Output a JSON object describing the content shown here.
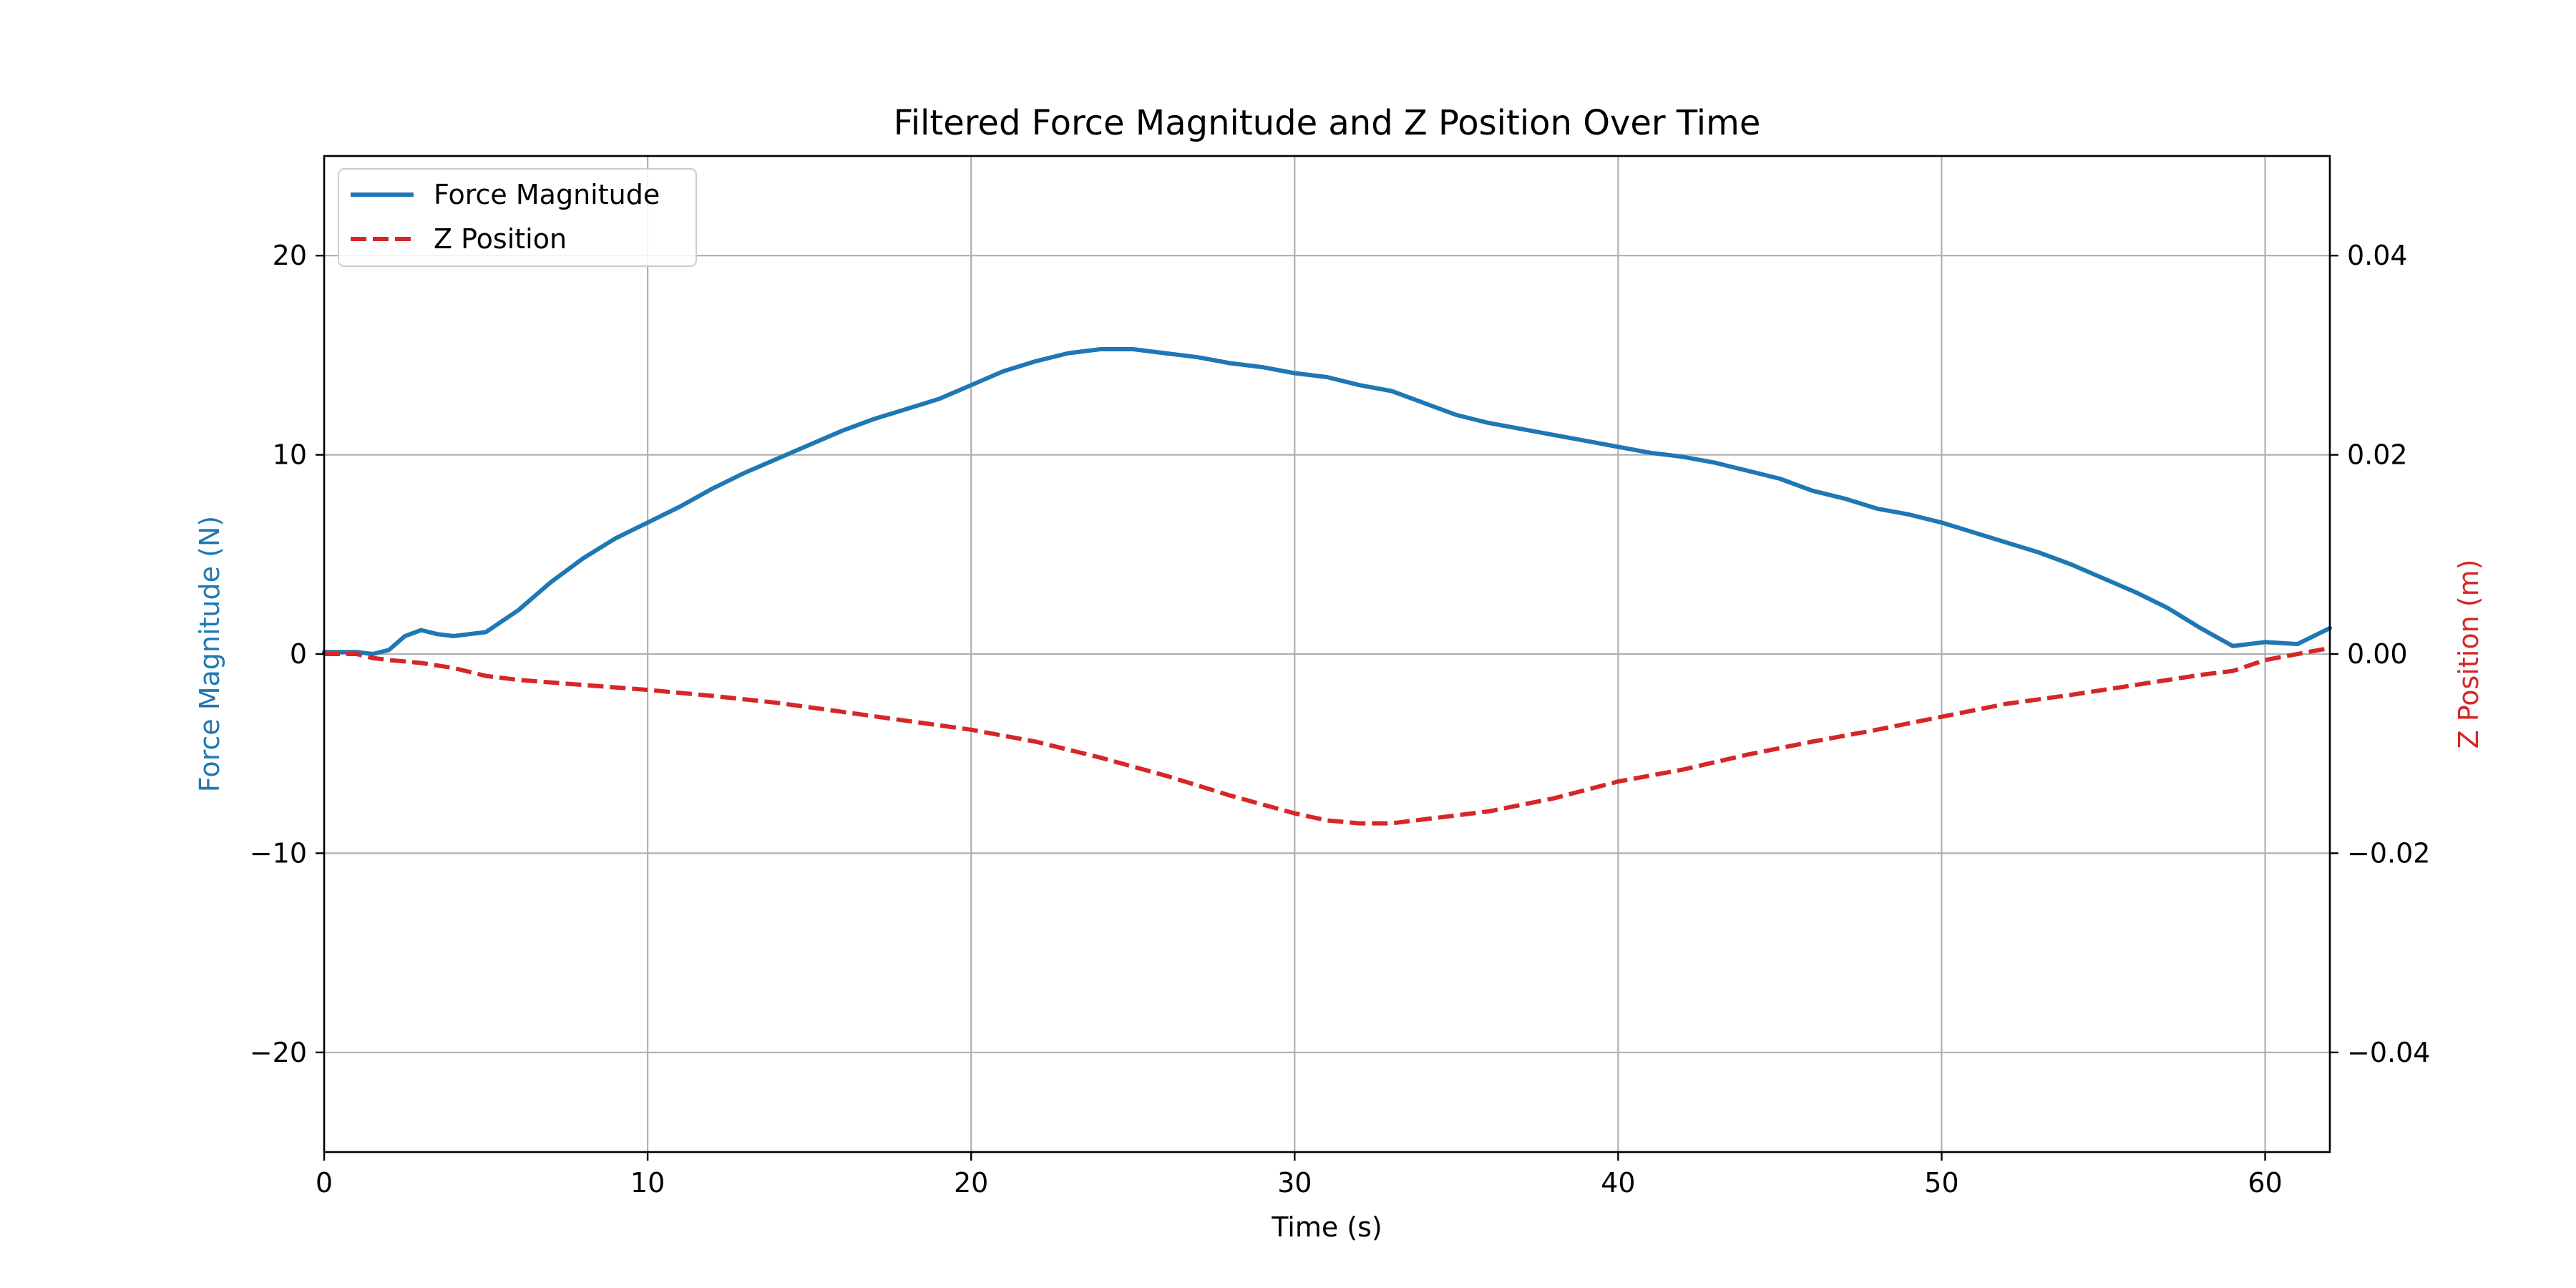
{
  "chart_data": {
    "type": "line",
    "title": "Filtered Force Magnitude and Z Position Over Time",
    "xlabel": "Time (s)",
    "ylabel_left": "Force Magnitude (N)",
    "ylabel_right": "Z Position (m)",
    "xlim": [
      0,
      62
    ],
    "ylim_left": [
      -25,
      25
    ],
    "ylim_right": [
      -0.05,
      0.05
    ],
    "x_ticks": [
      0,
      10,
      20,
      30,
      40,
      50,
      60
    ],
    "y_left_ticks": [
      -20,
      -10,
      0,
      10,
      20
    ],
    "y_right_ticks": [
      -0.04,
      -0.02,
      0.0,
      0.02,
      0.04
    ],
    "x_tick_labels": [
      "0",
      "10",
      "20",
      "30",
      "40",
      "50",
      "60"
    ],
    "y_left_tick_labels": [
      "−20",
      "−10",
      "0",
      "10",
      "20"
    ],
    "y_right_tick_labels": [
      "−0.04",
      "−0.02",
      "0.00",
      "0.02",
      "0.04"
    ],
    "grid": true,
    "legend_position": "upper-left",
    "series": [
      {
        "name": "Force Magnitude",
        "axis": "left",
        "color": "#1f77b4",
        "style": "solid",
        "x": [
          0,
          1,
          1.5,
          2,
          2.5,
          3,
          3.5,
          4,
          5,
          6,
          7,
          8,
          9,
          10,
          11,
          12,
          13,
          14,
          15,
          16,
          17,
          18,
          19,
          20,
          21,
          22,
          23,
          24,
          25,
          26,
          27,
          28,
          29,
          30,
          31,
          32,
          33,
          34,
          35,
          36,
          37,
          38,
          39,
          40,
          41,
          42,
          43,
          44,
          45,
          46,
          47,
          48,
          49,
          50,
          51,
          52,
          53,
          54,
          55,
          56,
          57,
          58,
          59,
          60,
          61,
          62
        ],
        "y": [
          0.1,
          0.1,
          0.0,
          0.2,
          0.9,
          1.2,
          1.0,
          0.9,
          1.1,
          2.2,
          3.6,
          4.8,
          5.8,
          6.6,
          7.4,
          8.3,
          9.1,
          9.8,
          10.5,
          11.2,
          11.8,
          12.3,
          12.8,
          13.5,
          14.2,
          14.7,
          15.1,
          15.3,
          15.3,
          15.1,
          14.9,
          14.6,
          14.4,
          14.1,
          13.9,
          13.5,
          13.2,
          12.6,
          12.0,
          11.6,
          11.3,
          11.0,
          10.7,
          10.4,
          10.1,
          9.9,
          9.6,
          9.2,
          8.8,
          8.2,
          7.8,
          7.3,
          7.0,
          6.6,
          6.1,
          5.6,
          5.1,
          4.5,
          3.8,
          3.1,
          2.3,
          1.3,
          0.4,
          0.6,
          0.5,
          1.3
        ]
      },
      {
        "name": "Z Position",
        "axis": "right",
        "color": "#d62728",
        "style": "dashed",
        "x": [
          0,
          1,
          1.5,
          2,
          3,
          4,
          5,
          6,
          8,
          10,
          12,
          14,
          16,
          18,
          20,
          22,
          24,
          26,
          28,
          30,
          31,
          32,
          33,
          34,
          36,
          38,
          40,
          42,
          44,
          46,
          48,
          50,
          52,
          54,
          56,
          58,
          59,
          60,
          61,
          62
        ],
        "y": [
          0.0,
          0.0,
          -0.0004,
          -0.0006,
          -0.0009,
          -0.0014,
          -0.0022,
          -0.0026,
          -0.0031,
          -0.0036,
          -0.0042,
          -0.0049,
          -0.0058,
          -0.0067,
          -0.0076,
          -0.0088,
          -0.0104,
          -0.0122,
          -0.0142,
          -0.016,
          -0.0167,
          -0.017,
          -0.017,
          -0.0166,
          -0.0158,
          -0.0145,
          -0.0128,
          -0.0116,
          -0.0101,
          -0.0088,
          -0.0076,
          -0.0063,
          -0.005,
          -0.0041,
          -0.0031,
          -0.0021,
          -0.0017,
          -0.0006,
          0.0,
          0.0006
        ]
      }
    ]
  }
}
